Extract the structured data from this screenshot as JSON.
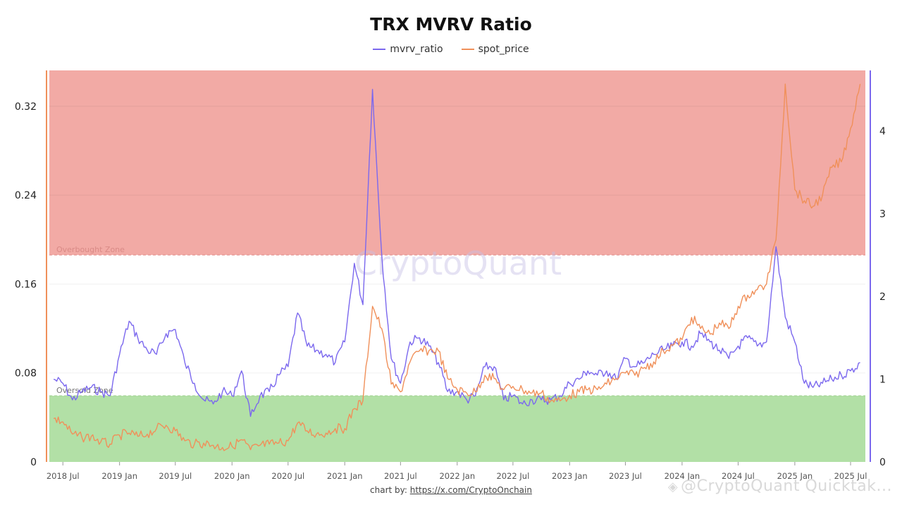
{
  "title": "TRX MVRV Ratio",
  "legend": [
    {
      "label": "mvrv_ratio",
      "color": "#7b68ee"
    },
    {
      "label": "spot_price",
      "color": "#f0905a"
    }
  ],
  "zones": {
    "overbought_label": "Overbought Zone",
    "oversold_label": "Oversold Zone",
    "overbought_color": "#f2aaa5",
    "oversold_color": "#b2e0a6",
    "overbought_from_mvrv": 2.5,
    "oversold_to_mvrv": 0.8
  },
  "watermark": "CryptoQuant",
  "attribution": {
    "prefix": "chart by: ",
    "link": "https://x.com/CryptoOnchain"
  },
  "bottom_watermark": "@CryptoQuant Quicktak...",
  "chart_data": {
    "type": "line",
    "x_ticks": [
      "2018 Jul",
      "2019 Jan",
      "2019 Jul",
      "2020 Jan",
      "2020 Jul",
      "2021 Jan",
      "2021 Jul",
      "2022 Jan",
      "2022 Jul",
      "2023 Jan",
      "2023 Jul",
      "2024 Jan",
      "2024 Jul",
      "2025 Jan",
      "2025 Jul"
    ],
    "left_axis": {
      "label": "",
      "ticks": [
        "0",
        "0.08",
        "0.16",
        "0.24",
        "0.32"
      ],
      "range": [
        0,
        0.3522
      ],
      "color": "#f0905a"
    },
    "right_axis": {
      "label": "",
      "ticks": [
        "0",
        "1",
        "2",
        "3",
        "4"
      ],
      "range": [
        0,
        4.73
      ],
      "color": "#7b68ee"
    },
    "series": [
      {
        "name": "mvrv_ratio",
        "axis": "right",
        "color": "#7b68ee",
        "points": [
          [
            "2018-06",
            1.0
          ],
          [
            "2018-07",
            0.95
          ],
          [
            "2018-08",
            0.75
          ],
          [
            "2018-09",
            0.85
          ],
          [
            "2018-10",
            0.9
          ],
          [
            "2018-11",
            0.85
          ],
          [
            "2018-12",
            0.8
          ],
          [
            "2019-01",
            1.3
          ],
          [
            "2019-02",
            1.7
          ],
          [
            "2019-03",
            1.5
          ],
          [
            "2019-04",
            1.35
          ],
          [
            "2019-05",
            1.3
          ],
          [
            "2019-06",
            1.55
          ],
          [
            "2019-07",
            1.6
          ],
          [
            "2019-08",
            1.2
          ],
          [
            "2019-09",
            0.95
          ],
          [
            "2019-10",
            0.75
          ],
          [
            "2019-11",
            0.7
          ],
          [
            "2019-12",
            0.85
          ],
          [
            "2020-01",
            0.8
          ],
          [
            "2020-02",
            1.1
          ],
          [
            "2020-03",
            0.55
          ],
          [
            "2020-04",
            0.8
          ],
          [
            "2020-05",
            0.85
          ],
          [
            "2020-06",
            1.05
          ],
          [
            "2020-07",
            1.15
          ],
          [
            "2020-08",
            1.8
          ],
          [
            "2020-09",
            1.4
          ],
          [
            "2020-10",
            1.35
          ],
          [
            "2020-11",
            1.3
          ],
          [
            "2020-12",
            1.2
          ],
          [
            "2021-01",
            1.45
          ],
          [
            "2021-02",
            2.4
          ],
          [
            "2021-03",
            1.9
          ],
          [
            "2021-04",
            4.5
          ],
          [
            "2021-05",
            2.5
          ],
          [
            "2021-06",
            1.25
          ],
          [
            "2021-07",
            0.95
          ],
          [
            "2021-08",
            1.45
          ],
          [
            "2021-09",
            1.5
          ],
          [
            "2021-10",
            1.4
          ],
          [
            "2021-11",
            1.2
          ],
          [
            "2021-12",
            0.85
          ],
          [
            "2022-01",
            0.85
          ],
          [
            "2022-02",
            0.75
          ],
          [
            "2022-03",
            0.8
          ],
          [
            "2022-04",
            1.15
          ],
          [
            "2022-05",
            1.15
          ],
          [
            "2022-06",
            0.75
          ],
          [
            "2022-07",
            0.8
          ],
          [
            "2022-08",
            0.7
          ],
          [
            "2022-09",
            0.75
          ],
          [
            "2022-10",
            0.75
          ],
          [
            "2022-11",
            0.75
          ],
          [
            "2022-12",
            0.8
          ],
          [
            "2023-01",
            0.95
          ],
          [
            "2023-02",
            1.0
          ],
          [
            "2023-03",
            1.1
          ],
          [
            "2023-04",
            1.05
          ],
          [
            "2023-05",
            1.1
          ],
          [
            "2023-06",
            1.0
          ],
          [
            "2023-07",
            1.25
          ],
          [
            "2023-08",
            1.15
          ],
          [
            "2023-09",
            1.2
          ],
          [
            "2023-10",
            1.3
          ],
          [
            "2023-11",
            1.35
          ],
          [
            "2023-12",
            1.4
          ],
          [
            "2024-01",
            1.45
          ],
          [
            "2024-02",
            1.4
          ],
          [
            "2024-03",
            1.55
          ],
          [
            "2024-04",
            1.45
          ],
          [
            "2024-05",
            1.35
          ],
          [
            "2024-06",
            1.25
          ],
          [
            "2024-07",
            1.4
          ],
          [
            "2024-08",
            1.5
          ],
          [
            "2024-09",
            1.4
          ],
          [
            "2024-10",
            1.45
          ],
          [
            "2024-11",
            2.6
          ],
          [
            "2024-12",
            1.75
          ],
          [
            "2025-01",
            1.45
          ],
          [
            "2025-02",
            0.95
          ],
          [
            "2025-03",
            0.9
          ],
          [
            "2025-04",
            0.95
          ],
          [
            "2025-05",
            1.0
          ],
          [
            "2025-06",
            1.05
          ],
          [
            "2025-07",
            1.1
          ],
          [
            "2025-08",
            1.2
          ]
        ]
      },
      {
        "name": "spot_price",
        "axis": "left",
        "color": "#f0905a",
        "points": [
          [
            "2018-06",
            0.039
          ],
          [
            "2018-07",
            0.036
          ],
          [
            "2018-08",
            0.025
          ],
          [
            "2018-09",
            0.022
          ],
          [
            "2018-10",
            0.023
          ],
          [
            "2018-11",
            0.018
          ],
          [
            "2018-12",
            0.016
          ],
          [
            "2019-01",
            0.024
          ],
          [
            "2019-02",
            0.026
          ],
          [
            "2019-03",
            0.023
          ],
          [
            "2019-04",
            0.025
          ],
          [
            "2019-05",
            0.03
          ],
          [
            "2019-06",
            0.033
          ],
          [
            "2019-07",
            0.028
          ],
          [
            "2019-08",
            0.019
          ],
          [
            "2019-09",
            0.016
          ],
          [
            "2019-10",
            0.017
          ],
          [
            "2019-11",
            0.015
          ],
          [
            "2019-12",
            0.013
          ],
          [
            "2020-01",
            0.014
          ],
          [
            "2020-02",
            0.02
          ],
          [
            "2020-03",
            0.011
          ],
          [
            "2020-04",
            0.015
          ],
          [
            "2020-05",
            0.016
          ],
          [
            "2020-06",
            0.017
          ],
          [
            "2020-07",
            0.019
          ],
          [
            "2020-08",
            0.035
          ],
          [
            "2020-09",
            0.028
          ],
          [
            "2020-10",
            0.025
          ],
          [
            "2020-11",
            0.026
          ],
          [
            "2020-12",
            0.03
          ],
          [
            "2021-01",
            0.03
          ],
          [
            "2021-02",
            0.048
          ],
          [
            "2021-03",
            0.055
          ],
          [
            "2021-04",
            0.14
          ],
          [
            "2021-05",
            0.12
          ],
          [
            "2021-06",
            0.07
          ],
          [
            "2021-07",
            0.063
          ],
          [
            "2021-08",
            0.09
          ],
          [
            "2021-09",
            0.1
          ],
          [
            "2021-10",
            0.1
          ],
          [
            "2021-11",
            0.1
          ],
          [
            "2021-12",
            0.075
          ],
          [
            "2022-01",
            0.065
          ],
          [
            "2022-02",
            0.062
          ],
          [
            "2022-03",
            0.063
          ],
          [
            "2022-04",
            0.078
          ],
          [
            "2022-05",
            0.075
          ],
          [
            "2022-06",
            0.065
          ],
          [
            "2022-07",
            0.068
          ],
          [
            "2022-08",
            0.065
          ],
          [
            "2022-09",
            0.062
          ],
          [
            "2022-10",
            0.062
          ],
          [
            "2022-11",
            0.055
          ],
          [
            "2022-12",
            0.055
          ],
          [
            "2023-01",
            0.06
          ],
          [
            "2023-02",
            0.063
          ],
          [
            "2023-03",
            0.065
          ],
          [
            "2023-04",
            0.065
          ],
          [
            "2023-05",
            0.07
          ],
          [
            "2023-06",
            0.075
          ],
          [
            "2023-07",
            0.08
          ],
          [
            "2023-08",
            0.078
          ],
          [
            "2023-09",
            0.085
          ],
          [
            "2023-10",
            0.09
          ],
          [
            "2023-11",
            0.1
          ],
          [
            "2023-12",
            0.105
          ],
          [
            "2024-01",
            0.11
          ],
          [
            "2024-02",
            0.13
          ],
          [
            "2024-03",
            0.12
          ],
          [
            "2024-04",
            0.115
          ],
          [
            "2024-05",
            0.125
          ],
          [
            "2024-06",
            0.12
          ],
          [
            "2024-07",
            0.14
          ],
          [
            "2024-08",
            0.15
          ],
          [
            "2024-09",
            0.155
          ],
          [
            "2024-10",
            0.16
          ],
          [
            "2024-11",
            0.2
          ],
          [
            "2024-12",
            0.34
          ],
          [
            "2025-01",
            0.245
          ],
          [
            "2025-02",
            0.235
          ],
          [
            "2025-03",
            0.23
          ],
          [
            "2025-04",
            0.24
          ],
          [
            "2025-05",
            0.265
          ],
          [
            "2025-06",
            0.27
          ],
          [
            "2025-07",
            0.3
          ],
          [
            "2025-08",
            0.34
          ]
        ]
      }
    ]
  }
}
